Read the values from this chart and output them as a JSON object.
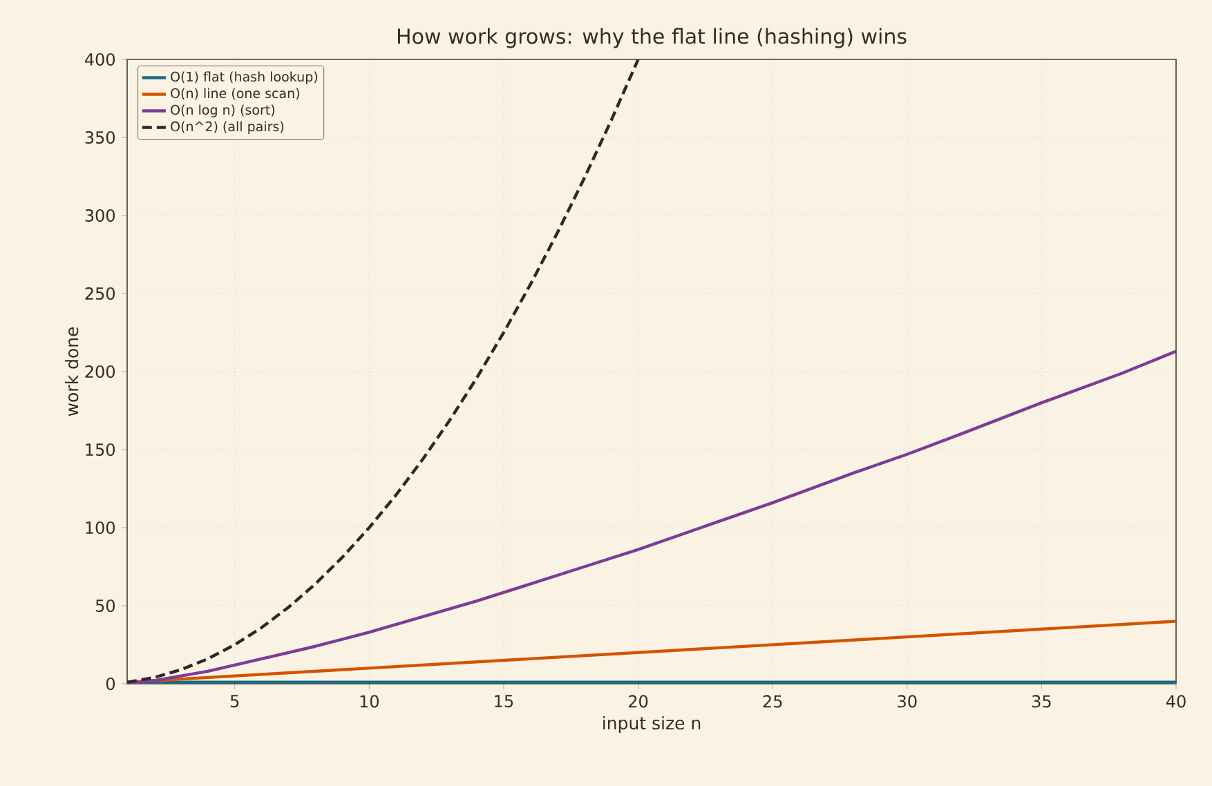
{
  "chart_data": {
    "type": "line",
    "title": "How work grows: why the flat line (hashing) wins",
    "xlabel": "input size  n",
    "ylabel": "work done",
    "xlim": [
      1,
      40
    ],
    "ylim": [
      0,
      400
    ],
    "xticks": [
      5,
      10,
      15,
      20,
      25,
      30,
      35,
      40
    ],
    "yticks": [
      0,
      50,
      100,
      150,
      200,
      250,
      300,
      350,
      400
    ],
    "grid": true,
    "legend": "top left",
    "marker": "none",
    "series": [
      {
        "name": "O(1) flat  (hash lookup)",
        "color": "#1d6a80",
        "line_style": "solid",
        "x": [
          1,
          40
        ],
        "values": [
          1,
          1
        ]
      },
      {
        "name": "O(n) line  (one scan)",
        "color": "#d35400",
        "line_style": "solid",
        "x": [
          1,
          40
        ],
        "values": [
          1,
          40
        ]
      },
      {
        "name": "O(n log n)  (sort)",
        "color": "#7d3c98",
        "line_style": "solid",
        "x": [
          1,
          2,
          3,
          4,
          5,
          6,
          8,
          10,
          12,
          14,
          16,
          18,
          20,
          22,
          25,
          28,
          30,
          32,
          35,
          38,
          40
        ],
        "values": [
          0,
          2,
          5,
          8,
          12,
          16,
          24,
          33,
          43,
          53,
          64,
          75,
          86,
          98,
          116,
          135,
          147,
          160,
          180,
          199,
          213
        ]
      },
      {
        "name": "O(n^2)  (all pairs)",
        "color": "#2d2a26",
        "line_style": "dashed",
        "x": [
          1,
          2,
          3,
          4,
          5,
          6,
          7,
          8,
          9,
          10,
          11,
          12,
          13,
          14,
          15,
          16,
          17,
          18,
          19,
          20
        ],
        "values": [
          1,
          4,
          9,
          16,
          25,
          36,
          49,
          64,
          81,
          100,
          121,
          144,
          169,
          196,
          225,
          256,
          289,
          324,
          361,
          400
        ]
      }
    ]
  }
}
